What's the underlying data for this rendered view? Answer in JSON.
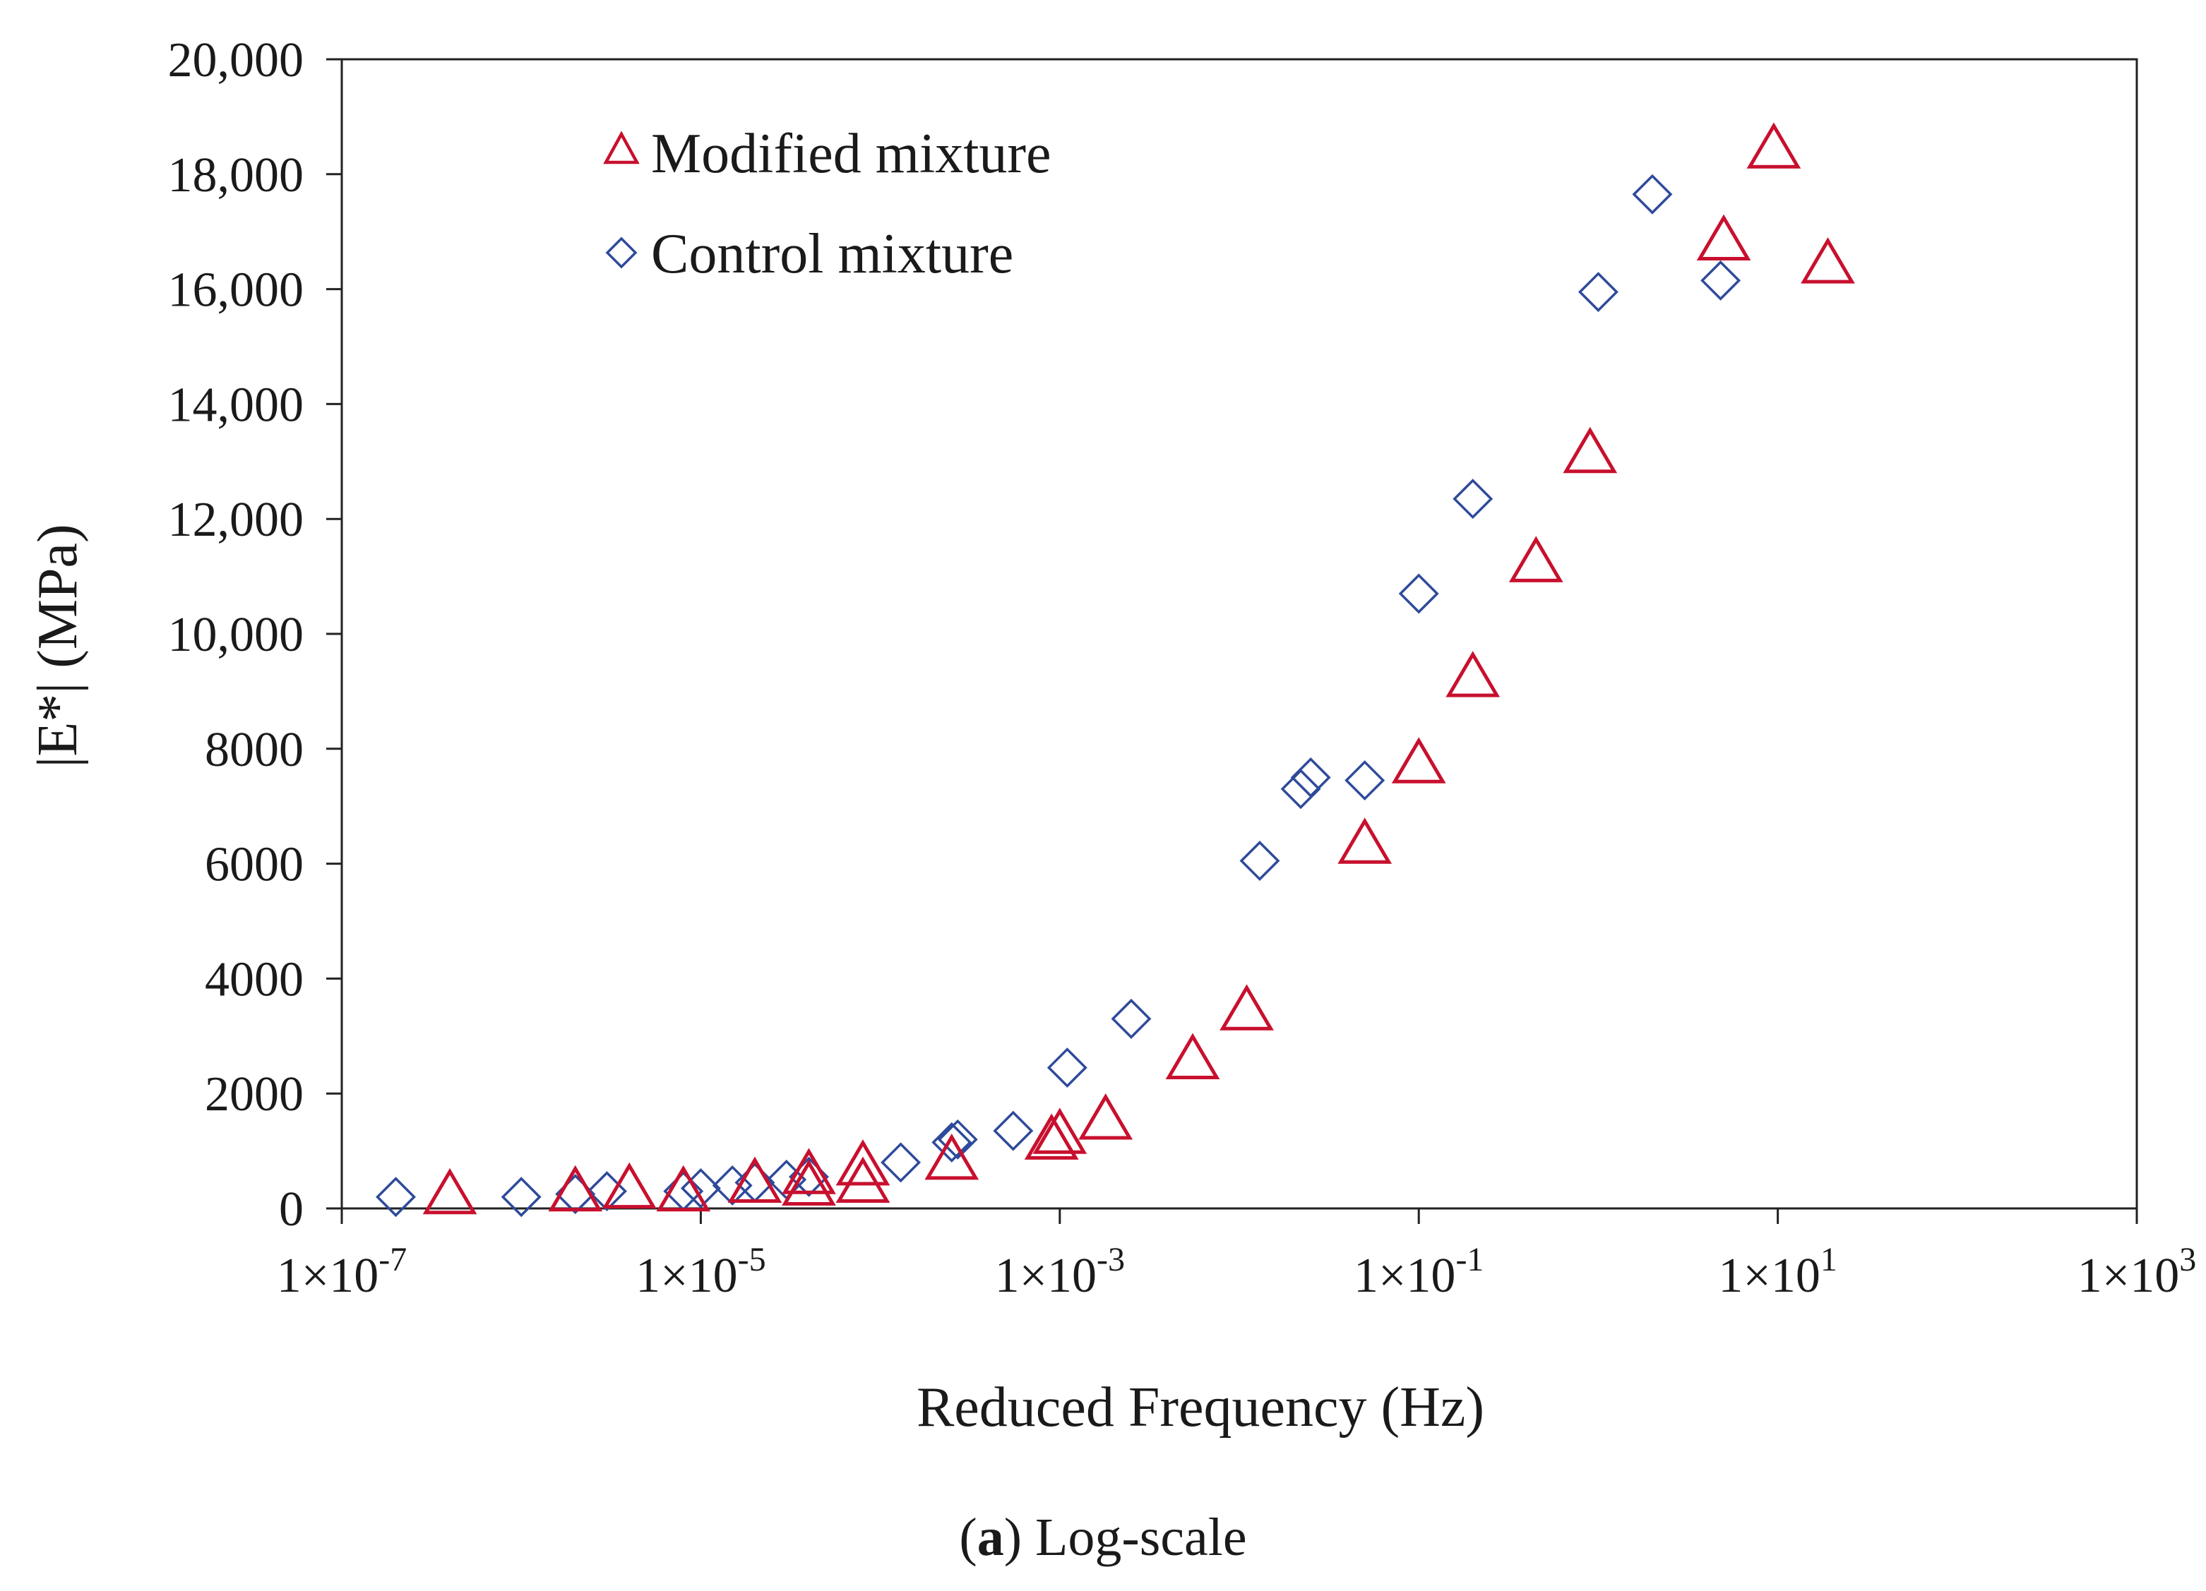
{
  "chart_data": {
    "type": "scatter",
    "title": "",
    "xlabel": "Reduced Frequency (Hz)",
    "ylabel": "|E*| (MPa)",
    "x_scale": "log",
    "xlim": [
      1e-07,
      1000
    ],
    "ylim": [
      0,
      20000
    ],
    "x_ticks": [
      {
        "value": 1e-07,
        "base": "1×10",
        "exp": "-7"
      },
      {
        "value": 1e-05,
        "base": "1×10",
        "exp": "-5"
      },
      {
        "value": 0.001,
        "base": "1×10",
        "exp": "-3"
      },
      {
        "value": 0.1,
        "base": "1×10",
        "exp": "-1"
      },
      {
        "value": 10,
        "base": "1×10",
        "exp": "1"
      },
      {
        "value": 1000,
        "base": "1×10",
        "exp": "3"
      }
    ],
    "y_ticks": [
      {
        "value": 0,
        "label": "0"
      },
      {
        "value": 2000,
        "label": "2000"
      },
      {
        "value": 4000,
        "label": "4000"
      },
      {
        "value": 6000,
        "label": "6000"
      },
      {
        "value": 8000,
        "label": "8000"
      },
      {
        "value": 10000,
        "label": "10,000"
      },
      {
        "value": 12000,
        "label": "12,000"
      },
      {
        "value": 14000,
        "label": "14,000"
      },
      {
        "value": 16000,
        "label": "16,000"
      },
      {
        "value": 18000,
        "label": "18,000"
      },
      {
        "value": 20000,
        "label": "20,000"
      }
    ],
    "legend_position": "top-left",
    "series": [
      {
        "name": "Modified mixture",
        "marker": "triangle",
        "color": "#c8102e",
        "points": [
          {
            "x": 4e-07,
            "y": 200
          },
          {
            "x": 2e-06,
            "y": 250
          },
          {
            "x": 4e-06,
            "y": 300
          },
          {
            "x": 8e-06,
            "y": 250
          },
          {
            "x": 2e-05,
            "y": 400
          },
          {
            "x": 4e-05,
            "y": 350
          },
          {
            "x": 4e-05,
            "y": 550
          },
          {
            "x": 8e-05,
            "y": 400
          },
          {
            "x": 8e-05,
            "y": 700
          },
          {
            "x": 0.00025,
            "y": 800
          },
          {
            "x": 0.0009,
            "y": 1150
          },
          {
            "x": 0.001,
            "y": 1250
          },
          {
            "x": 0.0018,
            "y": 1500
          },
          {
            "x": 0.0055,
            "y": 2550
          },
          {
            "x": 0.011,
            "y": 3400
          },
          {
            "x": 0.05,
            "y": 6300
          },
          {
            "x": 0.1,
            "y": 7700
          },
          {
            "x": 0.2,
            "y": 9200
          },
          {
            "x": 0.45,
            "y": 11200
          },
          {
            "x": 0.9,
            "y": 13100
          },
          {
            "x": 5,
            "y": 16800
          },
          {
            "x": 9.5,
            "y": 18400
          },
          {
            "x": 19,
            "y": 16400
          }
        ]
      },
      {
        "name": "Control mixture",
        "marker": "diamond",
        "color": "#2e4a9a",
        "points": [
          {
            "x": 2e-07,
            "y": 200
          },
          {
            "x": 1e-06,
            "y": 200
          },
          {
            "x": 2e-06,
            "y": 250
          },
          {
            "x": 3e-06,
            "y": 300
          },
          {
            "x": 8e-06,
            "y": 300
          },
          {
            "x": 1e-05,
            "y": 350
          },
          {
            "x": 1.5e-05,
            "y": 400
          },
          {
            "x": 2e-05,
            "y": 450
          },
          {
            "x": 3e-05,
            "y": 500
          },
          {
            "x": 4e-05,
            "y": 550
          },
          {
            "x": 0.00013,
            "y": 800
          },
          {
            "x": 0.00025,
            "y": 1150
          },
          {
            "x": 0.00027,
            "y": 1200
          },
          {
            "x": 0.00055,
            "y": 1350
          },
          {
            "x": 0.0011,
            "y": 2450
          },
          {
            "x": 0.0025,
            "y": 3300
          },
          {
            "x": 0.013,
            "y": 6050
          },
          {
            "x": 0.022,
            "y": 7300
          },
          {
            "x": 0.025,
            "y": 7500
          },
          {
            "x": 0.05,
            "y": 7450
          },
          {
            "x": 0.1,
            "y": 10700
          },
          {
            "x": 0.2,
            "y": 12350
          },
          {
            "x": 1.0,
            "y": 15950
          },
          {
            "x": 2.0,
            "y": 17650
          },
          {
            "x": 4.8,
            "y": 16150
          }
        ]
      }
    ]
  },
  "caption": {
    "label": "a",
    "open_paren": "(",
    "close_paren": ")",
    "text": " Log-scale"
  }
}
